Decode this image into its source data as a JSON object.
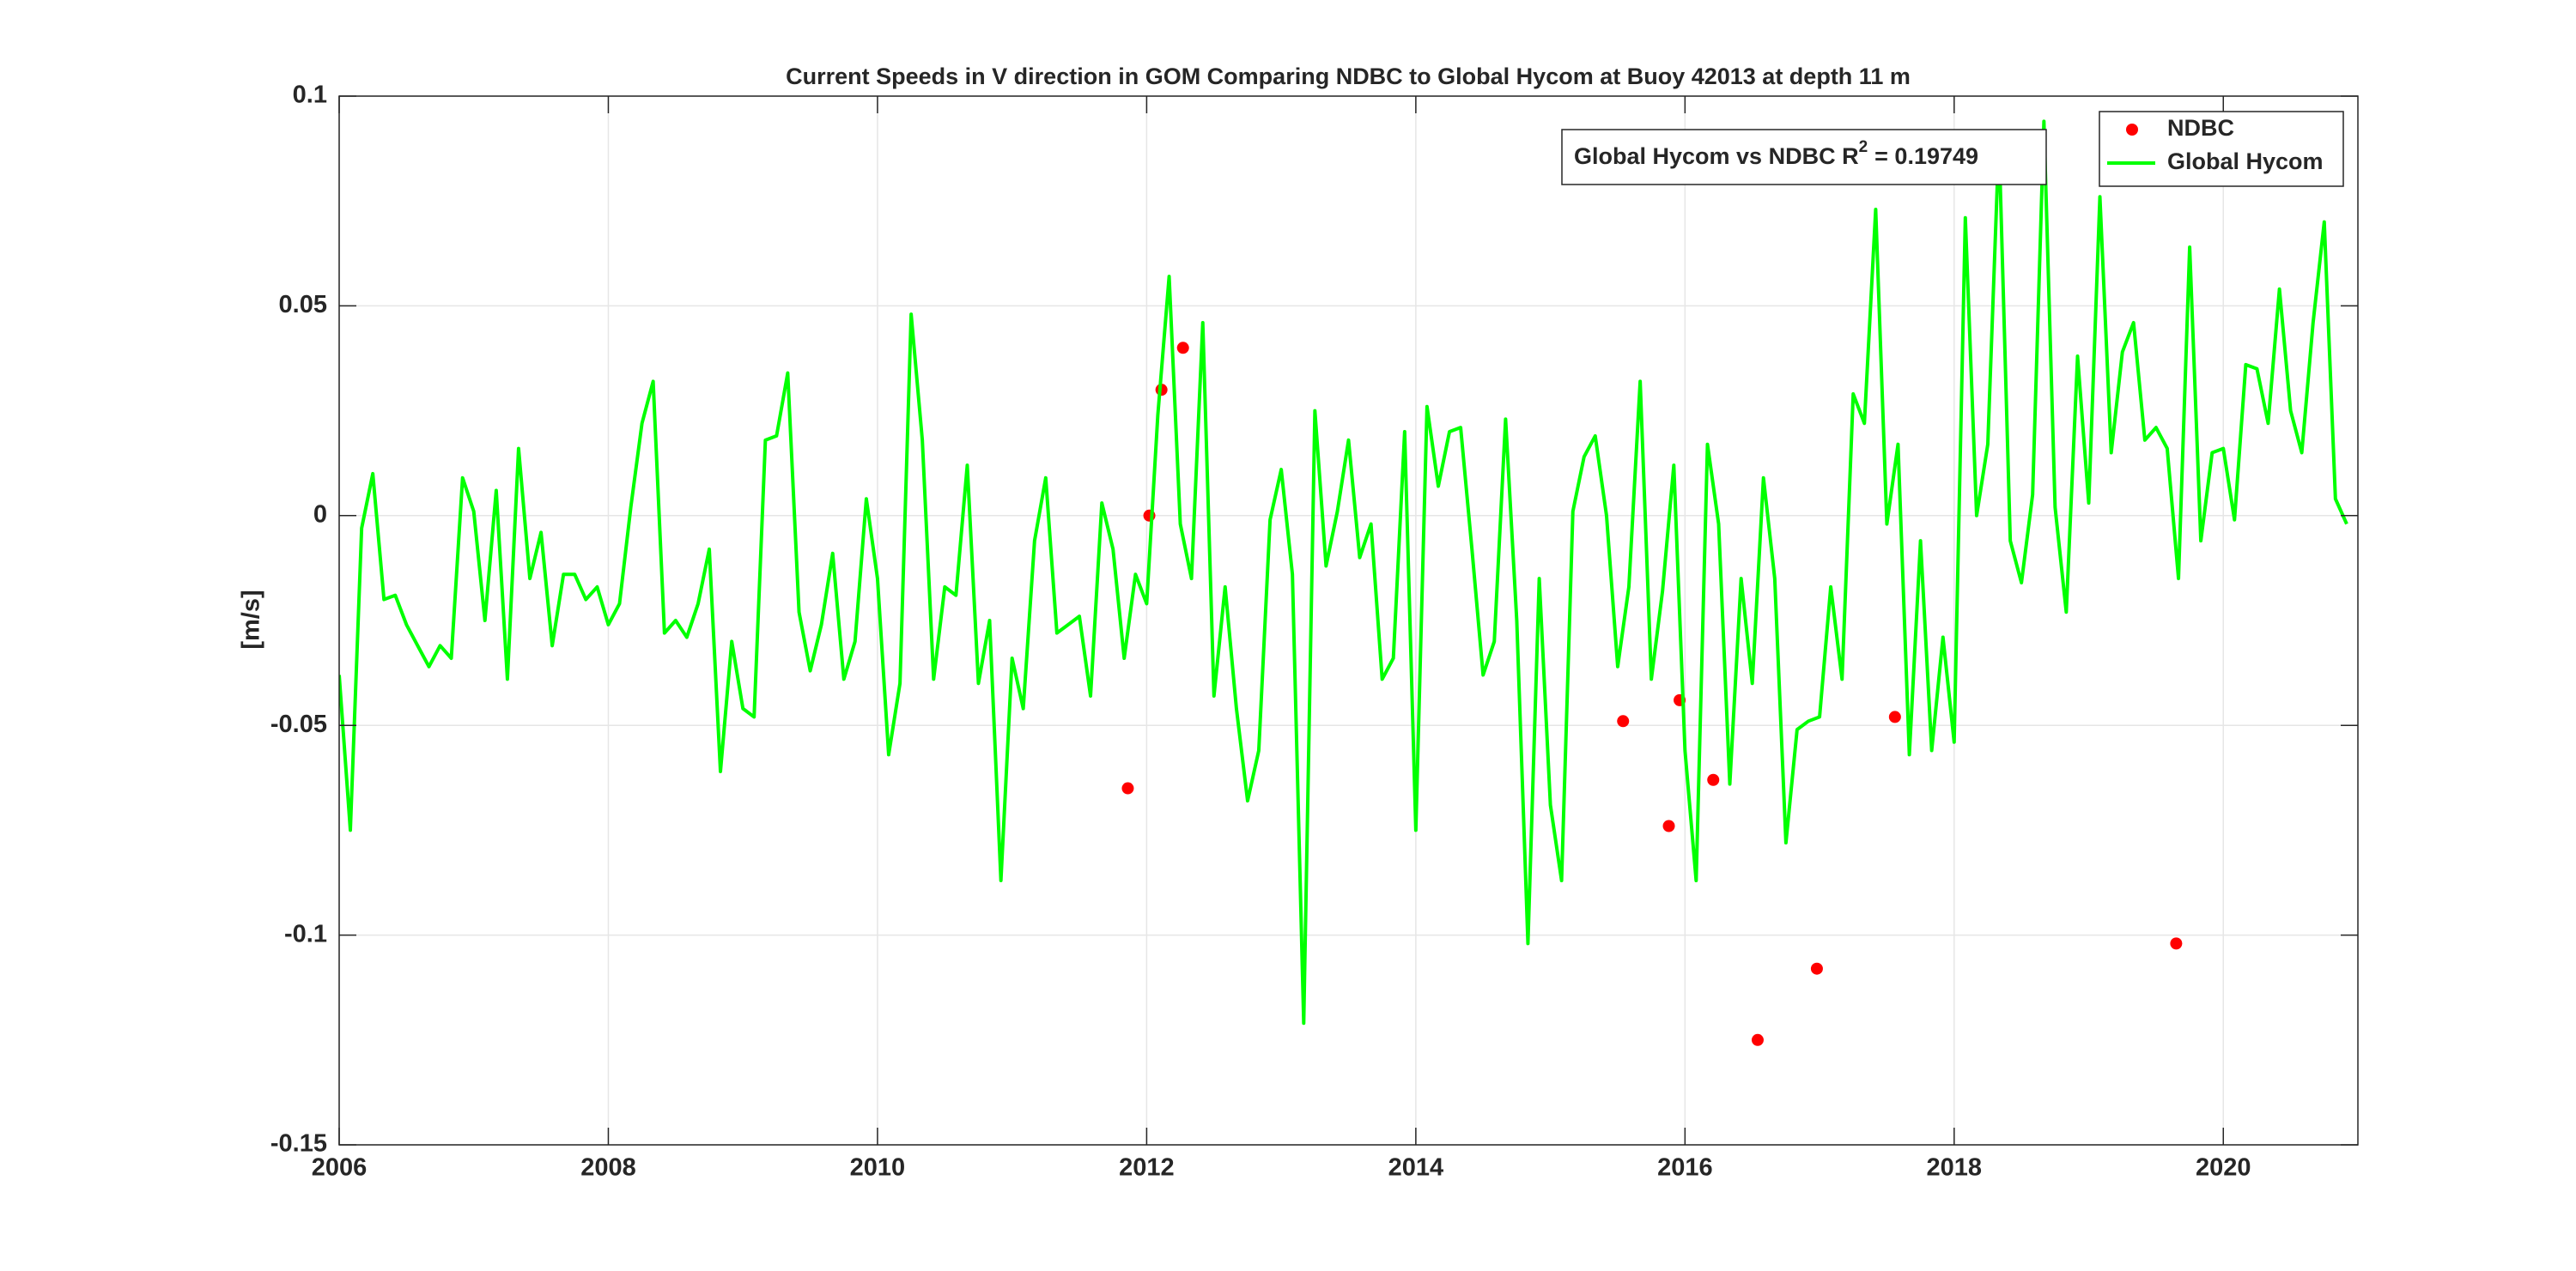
{
  "chart_data": {
    "type": "line",
    "title": "Current Speeds in V direction in GOM Comparing NDBC to Global Hycom at Buoy  42013  at depth  11 m",
    "y_label": "[m/s]",
    "annotation": {
      "prefix": "Global Hycom vs NDBC R",
      "superscript": "2",
      "suffix": "= 0.19749"
    },
    "xlim": [
      2006,
      2021
    ],
    "xticks": [
      2006,
      2008,
      2010,
      2012,
      2014,
      2016,
      2018,
      2020
    ],
    "ylim": [
      -0.15,
      0.1
    ],
    "yticks": [
      -0.15,
      -0.1,
      -0.05,
      0,
      0.05,
      0.1
    ],
    "grid": true,
    "legend": "northeast",
    "series": [
      {
        "name": "NDBC",
        "color": "#ff0000",
        "marker": "dot",
        "x": [
          2011.86,
          2012.02,
          2012.11,
          2012.27,
          2015.54,
          2015.88,
          2015.96,
          2016.21,
          2016.54,
          2016.98,
          2017.56,
          2019.65
        ],
        "values": [
          -0.065,
          0,
          0.03,
          0.04,
          -0.049,
          -0.074,
          -0.044,
          -0.063,
          -0.125,
          -0.108,
          -0.048,
          -0.102
        ]
      },
      {
        "name": "Global Hycom",
        "color": "#00ff00",
        "marker": "line",
        "x": [
          2006,
          2006.083,
          2006.167,
          2006.25,
          2006.333,
          2006.417,
          2006.5,
          2006.583,
          2006.667,
          2006.75,
          2006.833,
          2006.917,
          2007,
          2007.083,
          2007.167,
          2007.25,
          2007.333,
          2007.417,
          2007.5,
          2007.583,
          2007.667,
          2007.75,
          2007.833,
          2007.917,
          2008,
          2008.083,
          2008.167,
          2008.25,
          2008.333,
          2008.417,
          2008.5,
          2008.583,
          2008.667,
          2008.75,
          2008.833,
          2008.917,
          2009,
          2009.083,
          2009.167,
          2009.25,
          2009.333,
          2009.417,
          2009.5,
          2009.583,
          2009.667,
          2009.75,
          2009.833,
          2009.917,
          2010,
          2010.083,
          2010.167,
          2010.25,
          2010.333,
          2010.417,
          2010.5,
          2010.583,
          2010.667,
          2010.75,
          2010.833,
          2010.917,
          2011,
          2011.083,
          2011.167,
          2011.25,
          2011.333,
          2011.417,
          2011.5,
          2011.583,
          2011.667,
          2011.75,
          2011.833,
          2011.917,
          2012,
          2012.083,
          2012.167,
          2012.25,
          2012.333,
          2012.417,
          2012.5,
          2012.583,
          2012.667,
          2012.75,
          2012.833,
          2012.917,
          2013,
          2013.083,
          2013.167,
          2013.25,
          2013.333,
          2013.417,
          2013.5,
          2013.583,
          2013.667,
          2013.75,
          2013.833,
          2013.917,
          2014,
          2014.083,
          2014.167,
          2014.25,
          2014.333,
          2014.417,
          2014.5,
          2014.583,
          2014.667,
          2014.75,
          2014.833,
          2014.917,
          2015,
          2015.083,
          2015.167,
          2015.25,
          2015.333,
          2015.417,
          2015.5,
          2015.583,
          2015.667,
          2015.75,
          2015.833,
          2015.917,
          2016,
          2016.083,
          2016.167,
          2016.25,
          2016.333,
          2016.417,
          2016.5,
          2016.583,
          2016.667,
          2016.75,
          2016.833,
          2016.917,
          2017,
          2017.083,
          2017.167,
          2017.25,
          2017.333,
          2017.417,
          2017.5,
          2017.583,
          2017.667,
          2017.75,
          2017.833,
          2017.917,
          2018,
          2018.083,
          2018.167,
          2018.25,
          2018.333,
          2018.417,
          2018.5,
          2018.583,
          2018.667,
          2018.75,
          2018.833,
          2018.917,
          2019,
          2019.083,
          2019.167,
          2019.25,
          2019.333,
          2019.417,
          2019.5,
          2019.583,
          2019.667,
          2019.75,
          2019.833,
          2019.917,
          2020,
          2020.083,
          2020.167,
          2020.25,
          2020.333,
          2020.417,
          2020.5,
          2020.583,
          2020.667,
          2020.75,
          2020.833,
          2020.917
        ],
        "values": [
          -0.038,
          -0.075,
          -0.003,
          0.01,
          -0.02,
          -0.019,
          -0.026,
          -0.031,
          -0.036,
          -0.031,
          -0.034,
          0.009,
          0.001,
          -0.025,
          0.006,
          -0.039,
          0.016,
          -0.015,
          -0.004,
          -0.031,
          -0.014,
          -0.014,
          -0.02,
          -0.017,
          -0.026,
          -0.021,
          0.002,
          0.022,
          0.032,
          -0.028,
          -0.025,
          -0.029,
          -0.021,
          -0.008,
          -0.061,
          -0.03,
          -0.046,
          -0.048,
          0.018,
          0.019,
          0.034,
          -0.023,
          -0.037,
          -0.026,
          -0.009,
          -0.039,
          -0.03,
          0.004,
          -0.015,
          -0.057,
          -0.04,
          0.048,
          0.018,
          -0.039,
          -0.017,
          -0.019,
          0.012,
          -0.04,
          -0.025,
          -0.087,
          -0.034,
          -0.046,
          -0.006,
          0.009,
          -0.028,
          -0.026,
          -0.024,
          -0.043,
          0.003,
          -0.008,
          -0.034,
          -0.014,
          -0.021,
          0.024,
          0.057,
          -0.002,
          -0.015,
          0.046,
          -0.043,
          -0.017,
          -0.046,
          -0.068,
          -0.056,
          -0.001,
          0.011,
          -0.014,
          -0.121,
          0.025,
          -0.012,
          0.001,
          0.018,
          -0.01,
          -0.002,
          -0.039,
          -0.034,
          0.02,
          -0.075,
          0.026,
          0.007,
          0.02,
          0.021,
          -0.008,
          -0.038,
          -0.03,
          0.023,
          -0.025,
          -0.102,
          -0.015,
          -0.069,
          -0.087,
          0.001,
          0.014,
          0.019,
          0,
          -0.036,
          -0.017,
          0.032,
          -0.039,
          -0.018,
          0.012,
          -0.056,
          -0.087,
          0.017,
          -0.002,
          -0.064,
          -0.015,
          -0.04,
          0.009,
          -0.015,
          -0.078,
          -0.051,
          -0.049,
          -0.048,
          -0.017,
          -0.039,
          0.029,
          0.022,
          0.073,
          -0.002,
          0.017,
          -0.057,
          -0.006,
          -0.056,
          -0.029,
          -0.054,
          0.071,
          0,
          0.017,
          0.09,
          -0.006,
          -0.016,
          0.005,
          0.094,
          0.002,
          -0.023,
          0.038,
          0.003,
          0.076,
          0.015,
          0.039,
          0.046,
          0.018,
          0.021,
          0.016,
          -0.015,
          0.064,
          -0.006,
          0.015,
          0.016,
          -0.001,
          0.036,
          0.035,
          0.022,
          0.054,
          0.025,
          0.015,
          0.046,
          0.07,
          0.004,
          -0.002
        ]
      }
    ]
  }
}
